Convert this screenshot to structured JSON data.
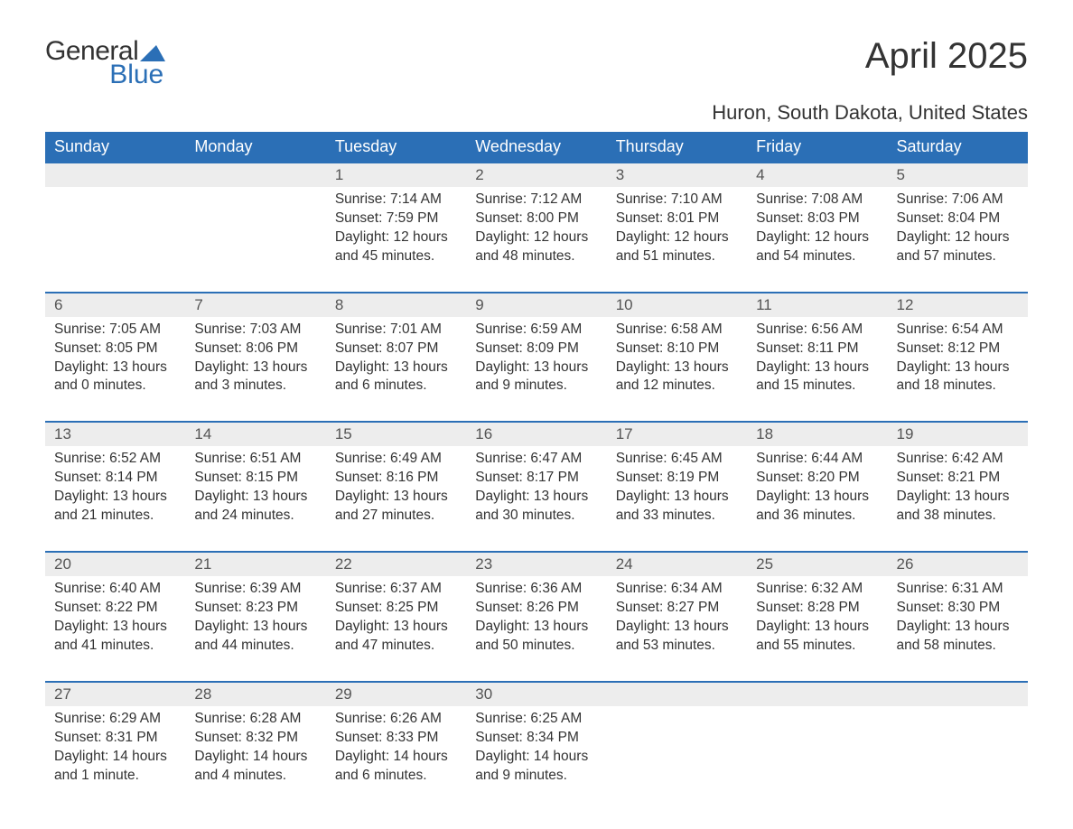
{
  "brand": {
    "word1": "General",
    "word2": "Blue"
  },
  "title": "April 2025",
  "location": "Huron, South Dakota, United States",
  "colors": {
    "brand_blue": "#2b6fb6",
    "header_bg": "#2b6fb6",
    "header_text": "#ffffff",
    "daynum_bg": "#ededed",
    "daynum_text": "#555555",
    "body_text": "#333333",
    "page_bg": "#ffffff",
    "week_border": "#2b6fb6"
  },
  "weekdays": [
    "Sunday",
    "Monday",
    "Tuesday",
    "Wednesday",
    "Thursday",
    "Friday",
    "Saturday"
  ],
  "weeks": [
    {
      "nums": [
        "",
        "",
        "1",
        "2",
        "3",
        "4",
        "5"
      ],
      "cells": [
        {
          "sunrise": "",
          "sunset": "",
          "daylight": ""
        },
        {
          "sunrise": "",
          "sunset": "",
          "daylight": ""
        },
        {
          "sunrise": "Sunrise: 7:14 AM",
          "sunset": "Sunset: 7:59 PM",
          "daylight": "Daylight: 12 hours and 45 minutes."
        },
        {
          "sunrise": "Sunrise: 7:12 AM",
          "sunset": "Sunset: 8:00 PM",
          "daylight": "Daylight: 12 hours and 48 minutes."
        },
        {
          "sunrise": "Sunrise: 7:10 AM",
          "sunset": "Sunset: 8:01 PM",
          "daylight": "Daylight: 12 hours and 51 minutes."
        },
        {
          "sunrise": "Sunrise: 7:08 AM",
          "sunset": "Sunset: 8:03 PM",
          "daylight": "Daylight: 12 hours and 54 minutes."
        },
        {
          "sunrise": "Sunrise: 7:06 AM",
          "sunset": "Sunset: 8:04 PM",
          "daylight": "Daylight: 12 hours and 57 minutes."
        }
      ]
    },
    {
      "nums": [
        "6",
        "7",
        "8",
        "9",
        "10",
        "11",
        "12"
      ],
      "cells": [
        {
          "sunrise": "Sunrise: 7:05 AM",
          "sunset": "Sunset: 8:05 PM",
          "daylight": "Daylight: 13 hours and 0 minutes."
        },
        {
          "sunrise": "Sunrise: 7:03 AM",
          "sunset": "Sunset: 8:06 PM",
          "daylight": "Daylight: 13 hours and 3 minutes."
        },
        {
          "sunrise": "Sunrise: 7:01 AM",
          "sunset": "Sunset: 8:07 PM",
          "daylight": "Daylight: 13 hours and 6 minutes."
        },
        {
          "sunrise": "Sunrise: 6:59 AM",
          "sunset": "Sunset: 8:09 PM",
          "daylight": "Daylight: 13 hours and 9 minutes."
        },
        {
          "sunrise": "Sunrise: 6:58 AM",
          "sunset": "Sunset: 8:10 PM",
          "daylight": "Daylight: 13 hours and 12 minutes."
        },
        {
          "sunrise": "Sunrise: 6:56 AM",
          "sunset": "Sunset: 8:11 PM",
          "daylight": "Daylight: 13 hours and 15 minutes."
        },
        {
          "sunrise": "Sunrise: 6:54 AM",
          "sunset": "Sunset: 8:12 PM",
          "daylight": "Daylight: 13 hours and 18 minutes."
        }
      ]
    },
    {
      "nums": [
        "13",
        "14",
        "15",
        "16",
        "17",
        "18",
        "19"
      ],
      "cells": [
        {
          "sunrise": "Sunrise: 6:52 AM",
          "sunset": "Sunset: 8:14 PM",
          "daylight": "Daylight: 13 hours and 21 minutes."
        },
        {
          "sunrise": "Sunrise: 6:51 AM",
          "sunset": "Sunset: 8:15 PM",
          "daylight": "Daylight: 13 hours and 24 minutes."
        },
        {
          "sunrise": "Sunrise: 6:49 AM",
          "sunset": "Sunset: 8:16 PM",
          "daylight": "Daylight: 13 hours and 27 minutes."
        },
        {
          "sunrise": "Sunrise: 6:47 AM",
          "sunset": "Sunset: 8:17 PM",
          "daylight": "Daylight: 13 hours and 30 minutes."
        },
        {
          "sunrise": "Sunrise: 6:45 AM",
          "sunset": "Sunset: 8:19 PM",
          "daylight": "Daylight: 13 hours and 33 minutes."
        },
        {
          "sunrise": "Sunrise: 6:44 AM",
          "sunset": "Sunset: 8:20 PM",
          "daylight": "Daylight: 13 hours and 36 minutes."
        },
        {
          "sunrise": "Sunrise: 6:42 AM",
          "sunset": "Sunset: 8:21 PM",
          "daylight": "Daylight: 13 hours and 38 minutes."
        }
      ]
    },
    {
      "nums": [
        "20",
        "21",
        "22",
        "23",
        "24",
        "25",
        "26"
      ],
      "cells": [
        {
          "sunrise": "Sunrise: 6:40 AM",
          "sunset": "Sunset: 8:22 PM",
          "daylight": "Daylight: 13 hours and 41 minutes."
        },
        {
          "sunrise": "Sunrise: 6:39 AM",
          "sunset": "Sunset: 8:23 PM",
          "daylight": "Daylight: 13 hours and 44 minutes."
        },
        {
          "sunrise": "Sunrise: 6:37 AM",
          "sunset": "Sunset: 8:25 PM",
          "daylight": "Daylight: 13 hours and 47 minutes."
        },
        {
          "sunrise": "Sunrise: 6:36 AM",
          "sunset": "Sunset: 8:26 PM",
          "daylight": "Daylight: 13 hours and 50 minutes."
        },
        {
          "sunrise": "Sunrise: 6:34 AM",
          "sunset": "Sunset: 8:27 PM",
          "daylight": "Daylight: 13 hours and 53 minutes."
        },
        {
          "sunrise": "Sunrise: 6:32 AM",
          "sunset": "Sunset: 8:28 PM",
          "daylight": "Daylight: 13 hours and 55 minutes."
        },
        {
          "sunrise": "Sunrise: 6:31 AM",
          "sunset": "Sunset: 8:30 PM",
          "daylight": "Daylight: 13 hours and 58 minutes."
        }
      ]
    },
    {
      "nums": [
        "27",
        "28",
        "29",
        "30",
        "",
        "",
        ""
      ],
      "cells": [
        {
          "sunrise": "Sunrise: 6:29 AM",
          "sunset": "Sunset: 8:31 PM",
          "daylight": "Daylight: 14 hours and 1 minute."
        },
        {
          "sunrise": "Sunrise: 6:28 AM",
          "sunset": "Sunset: 8:32 PM",
          "daylight": "Daylight: 14 hours and 4 minutes."
        },
        {
          "sunrise": "Sunrise: 6:26 AM",
          "sunset": "Sunset: 8:33 PM",
          "daylight": "Daylight: 14 hours and 6 minutes."
        },
        {
          "sunrise": "Sunrise: 6:25 AM",
          "sunset": "Sunset: 8:34 PM",
          "daylight": "Daylight: 14 hours and 9 minutes."
        },
        {
          "sunrise": "",
          "sunset": "",
          "daylight": ""
        },
        {
          "sunrise": "",
          "sunset": "",
          "daylight": ""
        },
        {
          "sunrise": "",
          "sunset": "",
          "daylight": ""
        }
      ]
    }
  ]
}
